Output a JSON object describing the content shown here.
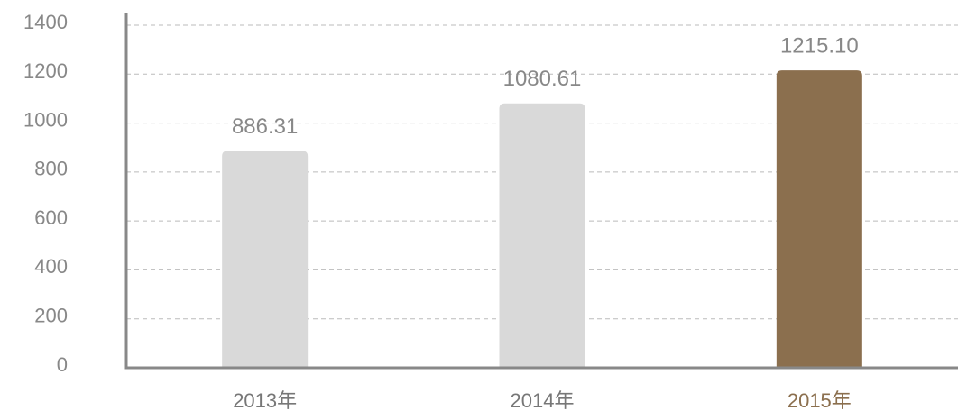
{
  "chart_data": {
    "type": "bar",
    "categories": [
      "2013年",
      "2014年",
      "2015年"
    ],
    "values": [
      886.31,
      1080.61,
      1215.1
    ],
    "value_labels": [
      "886.31",
      "1080.61",
      "1215.10"
    ],
    "colors": [
      "#d9d9d9",
      "#d9d9d9",
      "#8b6f4e"
    ],
    "label_colors": [
      "#777777",
      "#777777",
      "#8b6f4e"
    ],
    "ylim": [
      0,
      1400
    ],
    "yticks": [
      0,
      200,
      400,
      600,
      800,
      1000,
      1200,
      1400
    ],
    "grid": true
  }
}
